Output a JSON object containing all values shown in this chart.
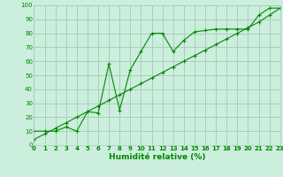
{
  "xlabel": "Humidité relative (%)",
  "bg_color": "#cceedd",
  "grid_color": "#aaccbb",
  "line_color": "#008800",
  "x_data": [
    0,
    1,
    2,
    3,
    4,
    5,
    6,
    7,
    8,
    9,
    10,
    11,
    12,
    13,
    14,
    15,
    16,
    17,
    18,
    19,
    20,
    21,
    22,
    23
  ],
  "y_zigzag": [
    10,
    10,
    10,
    13,
    10,
    24,
    23,
    58,
    25,
    54,
    67,
    80,
    80,
    67,
    75,
    81,
    82,
    83,
    83,
    83,
    83,
    93,
    98,
    98
  ],
  "y_line": [
    4,
    8,
    12,
    16,
    20,
    24,
    28,
    32,
    36,
    40,
    44,
    48,
    52,
    56,
    60,
    64,
    68,
    72,
    76,
    80,
    84,
    88,
    93,
    98
  ],
  "xlim": [
    0,
    23
  ],
  "ylim": [
    0,
    100
  ],
  "xtick_labels": [
    "0",
    "1",
    "2",
    "3",
    "4",
    "5",
    "6",
    "7",
    "8",
    "9",
    "10",
    "11",
    "12",
    "13",
    "14",
    "15",
    "16",
    "17",
    "18",
    "19",
    "20",
    "21",
    "22",
    "23"
  ],
  "ytick_values": [
    0,
    10,
    20,
    30,
    40,
    50,
    60,
    70,
    80,
    90,
    100
  ],
  "xlabel_fontsize": 6.5,
  "tick_fontsize": 5.0
}
